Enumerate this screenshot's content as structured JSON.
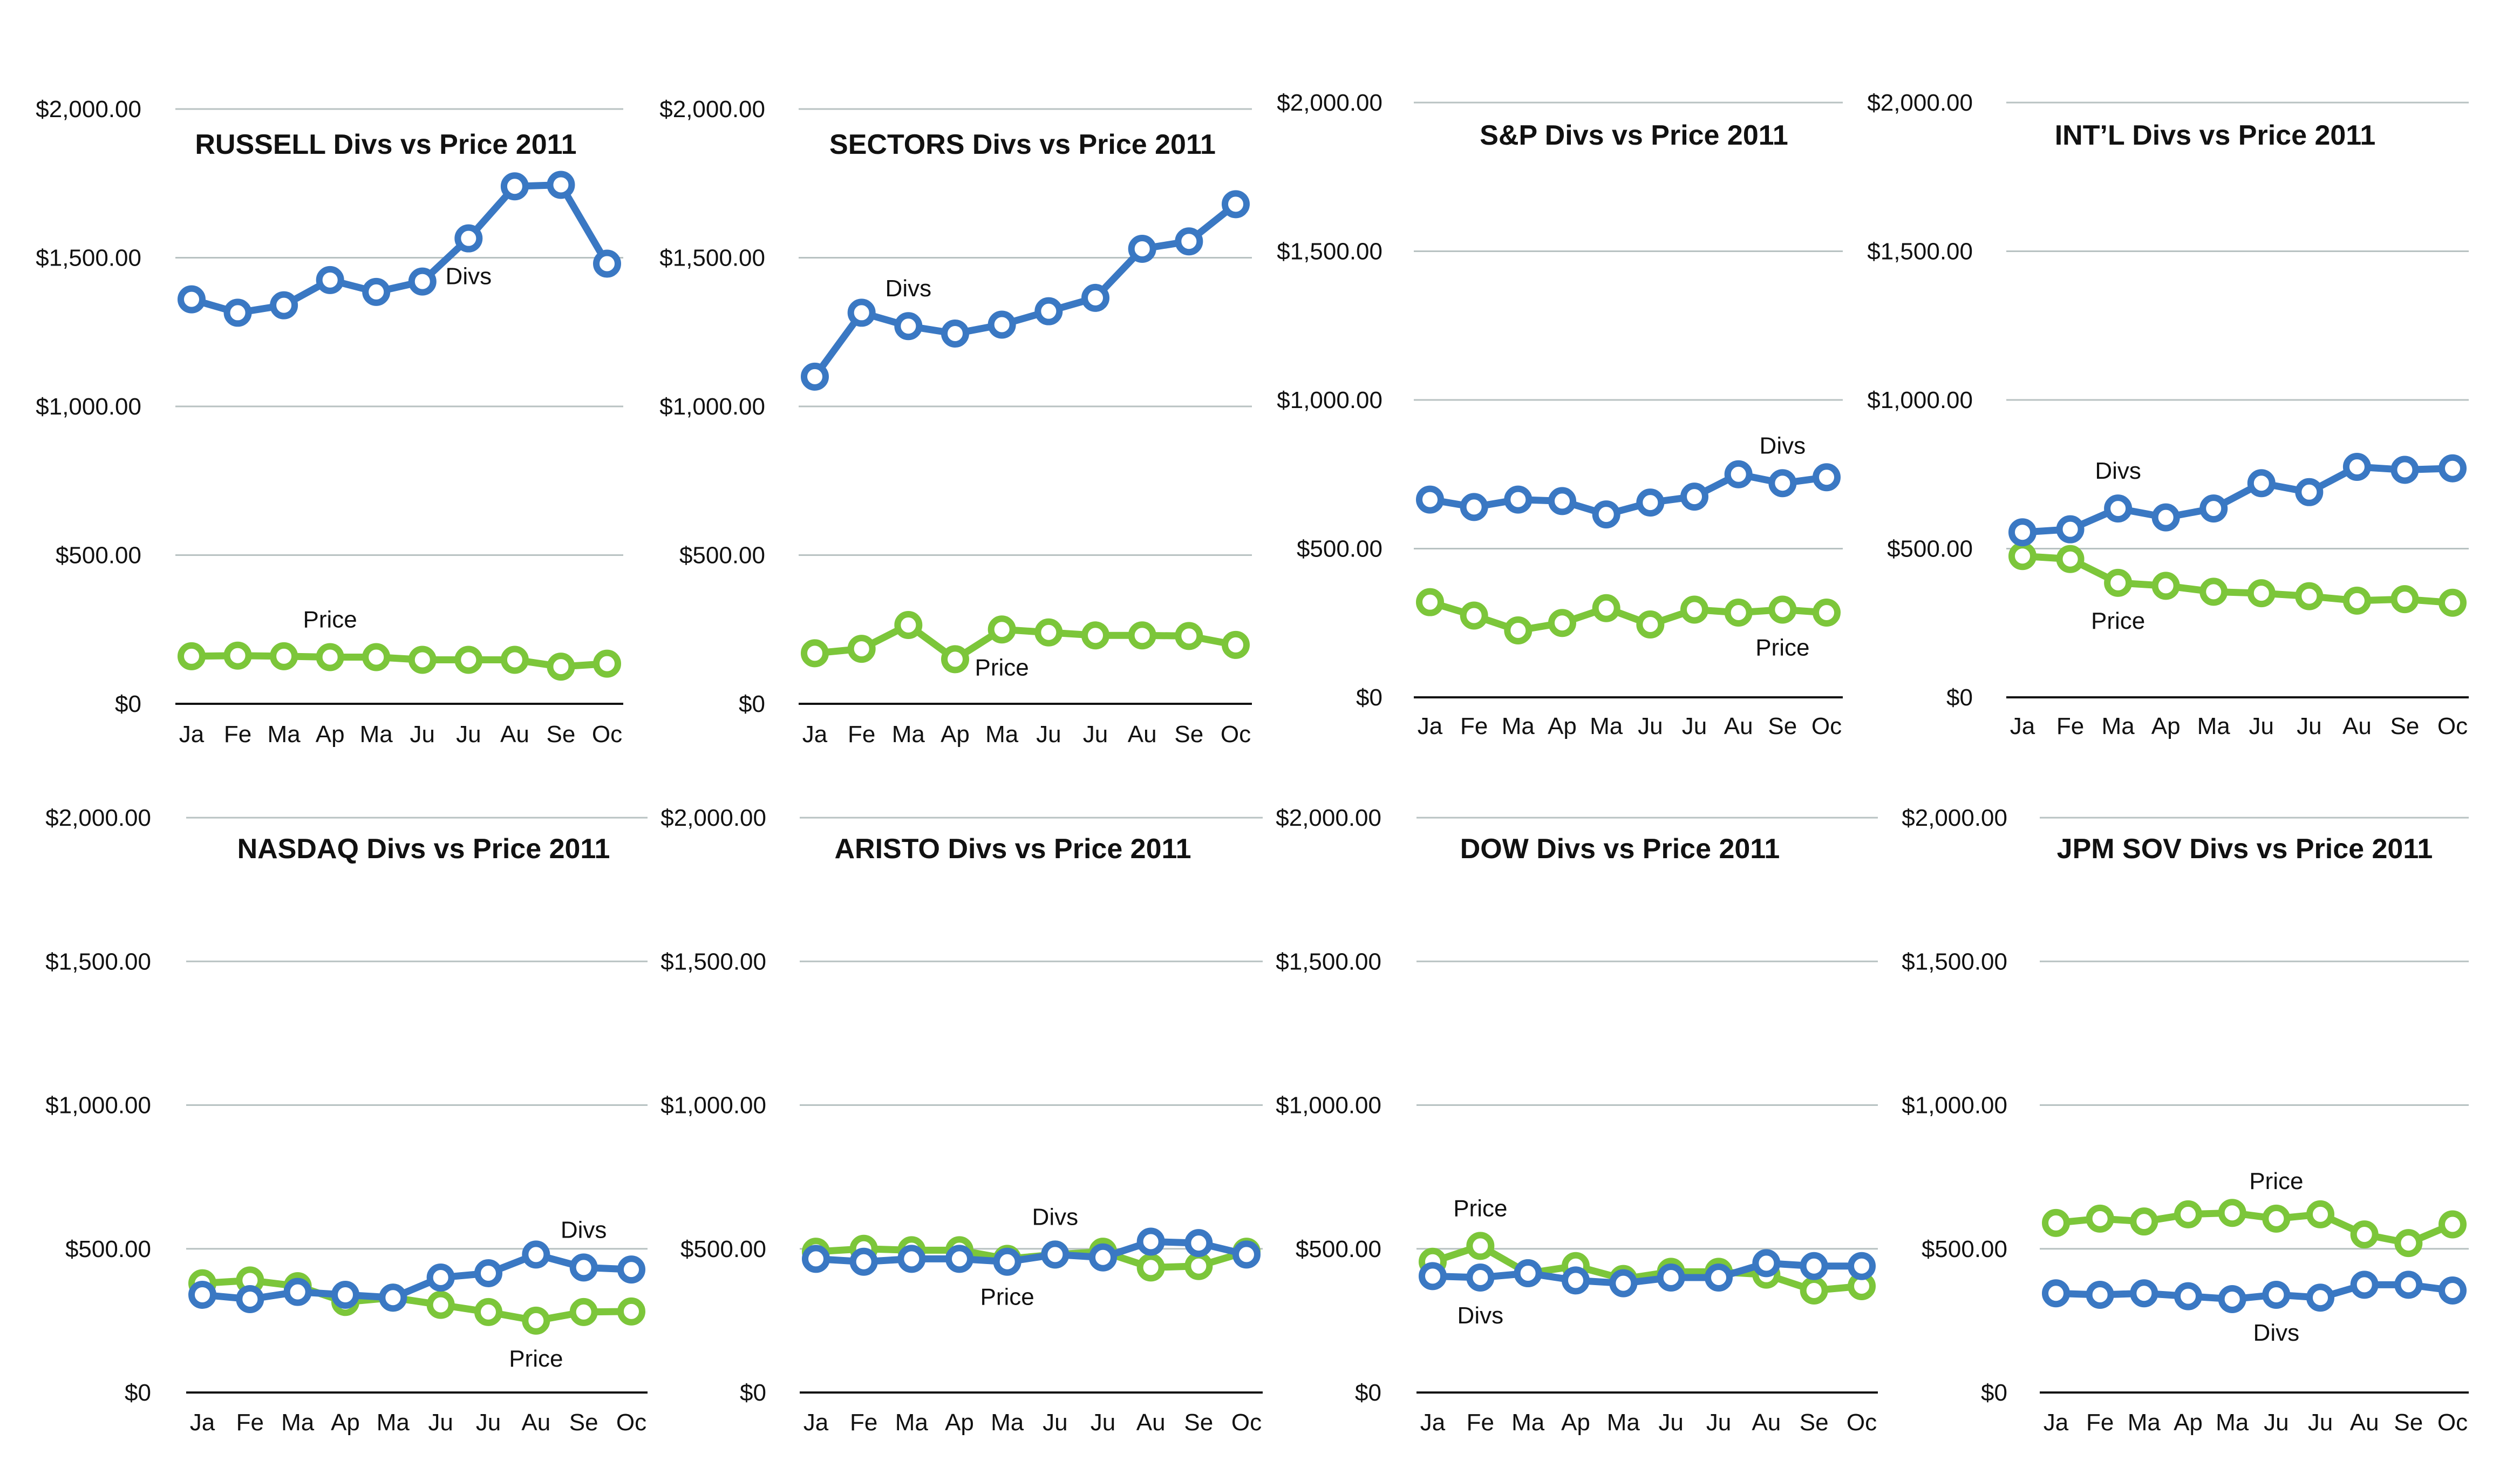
{
  "colors": {
    "divs": "#3a78c3",
    "price": "#7cc63a",
    "grid": "#b8c2c2",
    "axis": "#111111"
  },
  "y_ticks": [
    "$0",
    "$500.00",
    "$1,000.00",
    "$1,500.00",
    "$2,000.00"
  ],
  "chart_data": [
    {
      "type": "line",
      "title": "RUSSELL Divs vs Price 2011",
      "categories": [
        "Ja",
        "Fe",
        "Ma",
        "Ap",
        "Ma",
        "Ju",
        "Ju",
        "Au",
        "Se",
        "Oc"
      ],
      "ylim": [
        0,
        2000
      ],
      "grid": true,
      "series": [
        {
          "name": "Divs",
          "color": "#3a78c3",
          "values": [
            1360,
            1315,
            1340,
            1425,
            1385,
            1420,
            1565,
            1740,
            1745,
            1480
          ]
        },
        {
          "name": "Price",
          "color": "#7cc63a",
          "values": [
            160,
            162,
            160,
            157,
            157,
            148,
            148,
            148,
            125,
            135
          ]
        }
      ],
      "annotations": [
        {
          "text": "Divs",
          "series": "Divs",
          "index": 6,
          "pos": "below"
        },
        {
          "text": "Price",
          "series": "Price",
          "index": 3,
          "pos": "above"
        }
      ]
    },
    {
      "type": "line",
      "title": "SECTORS Divs vs Price 2011",
      "categories": [
        "Ja",
        "Fe",
        "Ma",
        "Ap",
        "Ma",
        "Ju",
        "Ju",
        "Au",
        "Se",
        "Oc"
      ],
      "ylim": [
        0,
        2000
      ],
      "grid": true,
      "series": [
        {
          "name": "Divs",
          "color": "#3a78c3",
          "values": [
            1100,
            1315,
            1270,
            1245,
            1275,
            1320,
            1365,
            1530,
            1555,
            1680
          ]
        },
        {
          "name": "Price",
          "color": "#7cc63a",
          "values": [
            170,
            185,
            265,
            150,
            250,
            240,
            230,
            230,
            228,
            198
          ]
        }
      ],
      "annotations": [
        {
          "text": "Divs",
          "series": "Divs",
          "index": 2,
          "pos": "above"
        },
        {
          "text": "Price",
          "series": "Price",
          "index": 4,
          "pos": "below"
        }
      ]
    },
    {
      "type": "line",
      "title": "S&P Divs vs Price 2011",
      "categories": [
        "Ja",
        "Fe",
        "Ma",
        "Ap",
        "Ma",
        "Ju",
        "Ju",
        "Au",
        "Se",
        "Oc"
      ],
      "ylim": [
        0,
        2000
      ],
      "grid": true,
      "series": [
        {
          "name": "Divs",
          "color": "#3a78c3",
          "values": [
            665,
            640,
            665,
            660,
            615,
            655,
            675,
            750,
            720,
            740
          ]
        },
        {
          "name": "Price",
          "color": "#7cc63a",
          "values": [
            320,
            275,
            225,
            250,
            300,
            245,
            295,
            285,
            295,
            285
          ]
        }
      ],
      "annotations": [
        {
          "text": "Divs",
          "series": "Divs",
          "index": 8,
          "pos": "above"
        },
        {
          "text": "Price",
          "series": "Price",
          "index": 8,
          "pos": "below"
        }
      ]
    },
    {
      "type": "line",
      "title": "INT’L Divs vs Price 2011",
      "categories": [
        "Ja",
        "Fe",
        "Ma",
        "Ap",
        "Ma",
        "Ju",
        "Ju",
        "Au",
        "Se",
        "Oc"
      ],
      "ylim": [
        0,
        2000
      ],
      "grid": true,
      "series": [
        {
          "name": "Divs",
          "color": "#3a78c3",
          "values": [
            555,
            565,
            635,
            605,
            635,
            720,
            690,
            775,
            765,
            770
          ]
        },
        {
          "name": "Price",
          "color": "#7cc63a",
          "values": [
            475,
            465,
            385,
            375,
            355,
            350,
            340,
            325,
            330,
            318
          ]
        }
      ],
      "annotations": [
        {
          "text": "Divs",
          "series": "Divs",
          "index": 2,
          "pos": "above"
        },
        {
          "text": "Price",
          "series": "Price",
          "index": 2,
          "pos": "below"
        }
      ]
    },
    {
      "type": "line",
      "title": "NASDAQ Divs vs Price 2011",
      "categories": [
        "Ja",
        "Fe",
        "Ma",
        "Ap",
        "Ma",
        "Ju",
        "Ju",
        "Au",
        "Se",
        "Oc"
      ],
      "ylim": [
        0,
        2000
      ],
      "grid": true,
      "series": [
        {
          "name": "Divs",
          "color": "#3a78c3",
          "values": [
            340,
            325,
            350,
            340,
            330,
            400,
            415,
            480,
            435,
            428
          ]
        },
        {
          "name": "Price",
          "color": "#7cc63a",
          "values": [
            380,
            390,
            370,
            315,
            330,
            305,
            280,
            250,
            280,
            282
          ]
        }
      ],
      "annotations": [
        {
          "text": "Divs",
          "series": "Divs",
          "index": 8,
          "pos": "above"
        },
        {
          "text": "Price",
          "series": "Price",
          "index": 7,
          "pos": "below"
        }
      ]
    },
    {
      "type": "line",
      "title": "ARISTO Divs vs Price 2011",
      "categories": [
        "Ja",
        "Fe",
        "Ma",
        "Ap",
        "Ma",
        "Ju",
        "Ju",
        "Au",
        "Se",
        "Oc"
      ],
      "ylim": [
        0,
        2000
      ],
      "grid": true,
      "series": [
        {
          "name": "Divs",
          "color": "#3a78c3",
          "values": [
            465,
            455,
            465,
            465,
            455,
            480,
            470,
            525,
            520,
            480
          ]
        },
        {
          "name": "Price",
          "color": "#7cc63a",
          "values": [
            490,
            500,
            495,
            495,
            465,
            480,
            490,
            435,
            440,
            490
          ]
        }
      ],
      "annotations": [
        {
          "text": "Divs",
          "series": "Divs",
          "index": 5,
          "pos": "above"
        },
        {
          "text": "Price",
          "series": "Price",
          "index": 4,
          "pos": "below"
        }
      ]
    },
    {
      "type": "line",
      "title": "DOW Divs vs Price 2011",
      "categories": [
        "Ja",
        "Fe",
        "Ma",
        "Ap",
        "Ma",
        "Ju",
        "Ju",
        "Au",
        "Se",
        "Oc"
      ],
      "ylim": [
        0,
        2000
      ],
      "grid": true,
      "series": [
        {
          "name": "Divs",
          "color": "#3a78c3",
          "values": [
            405,
            400,
            415,
            390,
            380,
            400,
            400,
            450,
            440,
            440
          ]
        },
        {
          "name": "Price",
          "color": "#7cc63a",
          "values": [
            455,
            510,
            415,
            440,
            395,
            420,
            420,
            410,
            355,
            370
          ]
        }
      ],
      "annotations": [
        {
          "text": "Price",
          "series": "Price",
          "index": 1,
          "pos": "above"
        },
        {
          "text": "Divs",
          "series": "Divs",
          "index": 1,
          "pos": "below"
        }
      ]
    },
    {
      "type": "line",
      "title": "JPM SOV Divs vs Price 2011",
      "categories": [
        "Ja",
        "Fe",
        "Ma",
        "Ap",
        "Ma",
        "Ju",
        "Ju",
        "Au",
        "Se",
        "Oc"
      ],
      "ylim": [
        0,
        2000
      ],
      "grid": true,
      "series": [
        {
          "name": "Divs",
          "color": "#3a78c3",
          "values": [
            345,
            340,
            345,
            335,
            325,
            340,
            330,
            375,
            375,
            355
          ]
        },
        {
          "name": "Price",
          "color": "#7cc63a",
          "values": [
            590,
            605,
            595,
            620,
            625,
            605,
            620,
            550,
            520,
            585
          ]
        }
      ],
      "annotations": [
        {
          "text": "Price",
          "series": "Price",
          "index": 5,
          "pos": "above"
        },
        {
          "text": "Divs",
          "series": "Divs",
          "index": 5,
          "pos": "below"
        }
      ]
    }
  ]
}
